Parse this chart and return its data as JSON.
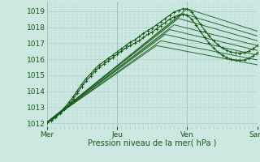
{
  "xlabel": "Pression niveau de la mer( hPa )",
  "bg_color": "#cce8e0",
  "grid_major_color": "#aacccc",
  "grid_minor_color": "#bbdddd",
  "line_color": "#1a5c1a",
  "ylim": [
    1011.8,
    1019.6
  ],
  "xlim": [
    0,
    192
  ],
  "day_labels": [
    "Mer",
    "Jeu",
    "Ven",
    "Sam"
  ],
  "day_positions": [
    0,
    64,
    128,
    192
  ],
  "yticks": [
    1012,
    1013,
    1014,
    1015,
    1016,
    1017,
    1018,
    1019
  ],
  "total_hours": 192,
  "ensemble_lines": [
    [
      [
        0,
        1012.05
      ],
      [
        128,
        1019.15
      ],
      [
        192,
        1017.75
      ]
    ],
    [
      [
        0,
        1012.05
      ],
      [
        124,
        1018.85
      ],
      [
        192,
        1017.45
      ]
    ],
    [
      [
        0,
        1012.05
      ],
      [
        120,
        1018.55
      ],
      [
        192,
        1017.15
      ]
    ],
    [
      [
        0,
        1012.05
      ],
      [
        116,
        1018.15
      ],
      [
        192,
        1016.85
      ]
    ],
    [
      [
        0,
        1012.05
      ],
      [
        112,
        1017.85
      ],
      [
        192,
        1016.55
      ]
    ],
    [
      [
        0,
        1012.05
      ],
      [
        108,
        1017.55
      ],
      [
        192,
        1016.25
      ]
    ],
    [
      [
        0,
        1012.05
      ],
      [
        104,
        1017.15
      ],
      [
        192,
        1015.95
      ]
    ],
    [
      [
        0,
        1012.05
      ],
      [
        100,
        1016.85
      ],
      [
        192,
        1015.65
      ]
    ]
  ],
  "dotted_line1": [
    [
      0,
      1012.05
    ],
    [
      4,
      1012.2
    ],
    [
      8,
      1012.4
    ],
    [
      12,
      1012.65
    ],
    [
      16,
      1012.95
    ],
    [
      20,
      1013.3
    ],
    [
      24,
      1013.65
    ],
    [
      28,
      1014.05
    ],
    [
      32,
      1014.45
    ],
    [
      36,
      1014.8
    ],
    [
      40,
      1015.1
    ],
    [
      44,
      1015.4
    ],
    [
      48,
      1015.65
    ],
    [
      52,
      1015.85
    ],
    [
      56,
      1016.05
    ],
    [
      60,
      1016.25
    ],
    [
      64,
      1016.45
    ],
    [
      68,
      1016.65
    ],
    [
      72,
      1016.85
    ],
    [
      76,
      1017.05
    ],
    [
      80,
      1017.2
    ],
    [
      84,
      1017.4
    ],
    [
      88,
      1017.6
    ],
    [
      92,
      1017.8
    ],
    [
      96,
      1017.95
    ],
    [
      100,
      1018.15
    ],
    [
      104,
      1018.35
    ],
    [
      108,
      1018.55
    ],
    [
      112,
      1018.75
    ],
    [
      116,
      1018.95
    ],
    [
      120,
      1019.05
    ],
    [
      124,
      1019.15
    ],
    [
      128,
      1019.15
    ],
    [
      132,
      1018.95
    ],
    [
      136,
      1018.6
    ],
    [
      140,
      1018.2
    ],
    [
      144,
      1017.8
    ],
    [
      148,
      1017.45
    ],
    [
      152,
      1017.15
    ],
    [
      156,
      1016.9
    ],
    [
      160,
      1016.7
    ],
    [
      164,
      1016.55
    ],
    [
      168,
      1016.45
    ],
    [
      172,
      1016.4
    ],
    [
      176,
      1016.38
    ],
    [
      180,
      1016.4
    ],
    [
      184,
      1016.5
    ],
    [
      188,
      1016.65
    ],
    [
      192,
      1016.85
    ]
  ],
  "dotted_line2": [
    [
      0,
      1012.05
    ],
    [
      4,
      1012.15
    ],
    [
      8,
      1012.35
    ],
    [
      12,
      1012.6
    ],
    [
      16,
      1012.85
    ],
    [
      20,
      1013.15
    ],
    [
      24,
      1013.5
    ],
    [
      28,
      1013.9
    ],
    [
      32,
      1014.3
    ],
    [
      36,
      1014.65
    ],
    [
      40,
      1014.95
    ],
    [
      44,
      1015.25
    ],
    [
      48,
      1015.5
    ],
    [
      52,
      1015.7
    ],
    [
      56,
      1015.9
    ],
    [
      60,
      1016.1
    ],
    [
      64,
      1016.3
    ],
    [
      68,
      1016.5
    ],
    [
      72,
      1016.7
    ],
    [
      76,
      1016.85
    ],
    [
      80,
      1017.0
    ],
    [
      84,
      1017.15
    ],
    [
      88,
      1017.35
    ],
    [
      92,
      1017.55
    ],
    [
      96,
      1017.7
    ],
    [
      100,
      1017.9
    ],
    [
      104,
      1018.1
    ],
    [
      108,
      1018.3
    ],
    [
      112,
      1018.5
    ],
    [
      116,
      1018.65
    ],
    [
      120,
      1018.75
    ],
    [
      124,
      1018.8
    ],
    [
      128,
      1018.75
    ],
    [
      132,
      1018.5
    ],
    [
      136,
      1018.15
    ],
    [
      140,
      1017.75
    ],
    [
      144,
      1017.35
    ],
    [
      148,
      1017.0
    ],
    [
      152,
      1016.7
    ],
    [
      156,
      1016.45
    ],
    [
      160,
      1016.25
    ],
    [
      164,
      1016.1
    ],
    [
      168,
      1016.0
    ],
    [
      172,
      1015.95
    ],
    [
      176,
      1015.93
    ],
    [
      180,
      1015.95
    ],
    [
      184,
      1016.05
    ],
    [
      188,
      1016.2
    ],
    [
      192,
      1016.4
    ]
  ]
}
